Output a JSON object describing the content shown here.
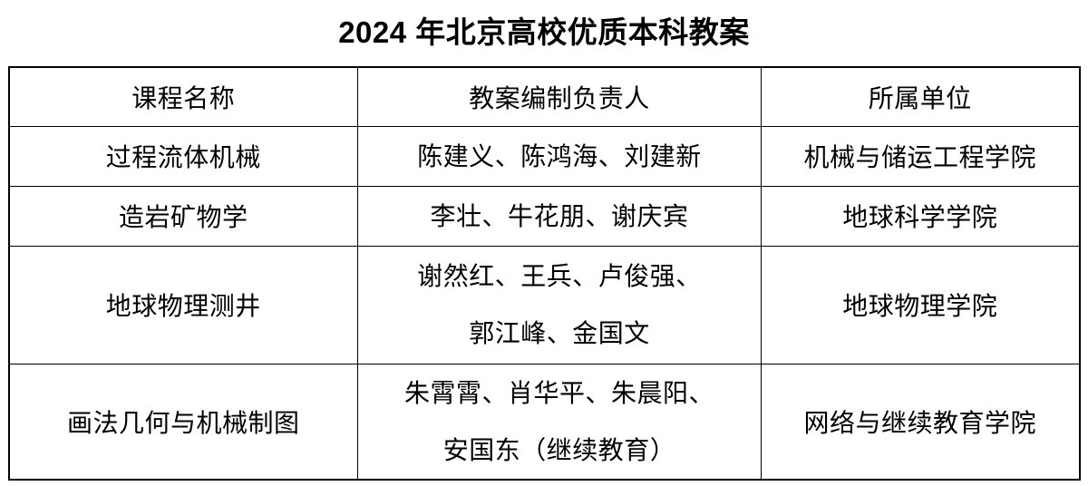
{
  "title": "2024 年北京高校优质本科教案",
  "table": {
    "columns": [
      "课程名称",
      "教案编制负责人",
      "所属单位"
    ],
    "rows": [
      {
        "course": "过程流体机械",
        "leaders": [
          "陈建义、陈鸿海、刘建新"
        ],
        "unit": "机械与储运工程学院"
      },
      {
        "course": "造岩矿物学",
        "leaders": [
          "李壮、牛花朋、谢庆宾"
        ],
        "unit": "地球科学学院"
      },
      {
        "course": "地球物理测井",
        "leaders": [
          "谢然红、王兵、卢俊强、",
          "郭江峰、金国文"
        ],
        "unit": "地球物理学院"
      },
      {
        "course": "画法几何与机械制图",
        "leaders": [
          "朱霄霄、肖华平、朱晨阳、",
          "安国东（继续教育）"
        ],
        "unit": "网络与继续教育学院"
      }
    ]
  },
  "colors": {
    "text": "#000000",
    "border": "#000000",
    "background": "#ffffff"
  }
}
